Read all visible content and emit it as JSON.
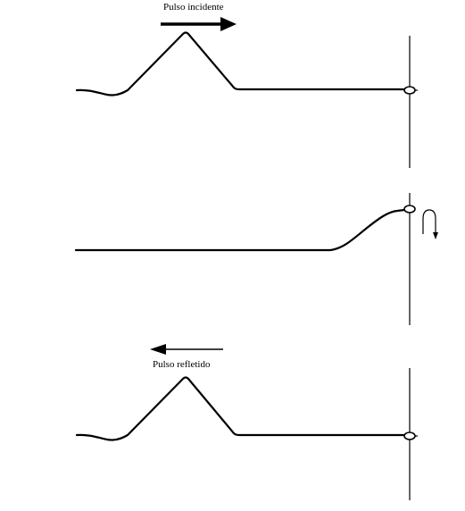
{
  "labels": {
    "incident": "Pulso incidente",
    "reflected": "Pulso refletido"
  },
  "colors": {
    "stroke": "#000000",
    "background": "#ffffff"
  },
  "icons": {
    "incident_arrow": "arrow-right-icon",
    "reflected_arrow": "arrow-left-icon",
    "flip_arrow": "curved-down-arrow-icon"
  }
}
